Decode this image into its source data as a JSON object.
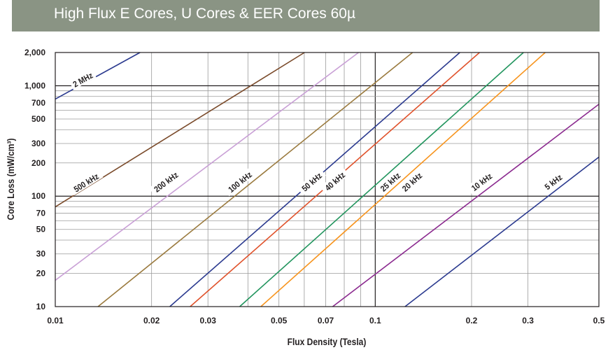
{
  "header": {
    "title": "High Flux E Cores, U Cores & EER Cores 60µ",
    "background": "#8a9484"
  },
  "chart_data": {
    "type": "line",
    "title": "High Flux E Cores, U Cores & EER Cores 60µ",
    "xlabel": "Flux Density (Tesla)",
    "ylabel": "Core Loss (mW/cm³)",
    "xscale": "log",
    "yscale": "log",
    "xlim": [
      0.01,
      0.5
    ],
    "ylim": [
      10,
      2000
    ],
    "grid": true,
    "x_ticks": [
      {
        "value": 0.01,
        "label": "0.01"
      },
      {
        "value": 0.02,
        "label": "0.02"
      },
      {
        "value": 0.03,
        "label": "0.03"
      },
      {
        "value": 0.05,
        "label": "0.05"
      },
      {
        "value": 0.07,
        "label": "0.07"
      },
      {
        "value": 0.1,
        "label": "0.1"
      },
      {
        "value": 0.2,
        "label": "0.2"
      },
      {
        "value": 0.3,
        "label": "0.3"
      },
      {
        "value": 0.5,
        "label": "0.5"
      }
    ],
    "y_ticks": [
      {
        "value": 10,
        "label": "10"
      },
      {
        "value": 20,
        "label": "20"
      },
      {
        "value": 30,
        "label": "30"
      },
      {
        "value": 50,
        "label": "50"
      },
      {
        "value": 70,
        "label": "70"
      },
      {
        "value": 100,
        "label": "100"
      },
      {
        "value": 200,
        "label": "200"
      },
      {
        "value": 300,
        "label": "300"
      },
      {
        "value": 500,
        "label": "500"
      },
      {
        "value": 700,
        "label": "700"
      },
      {
        "value": 1000,
        "label": "1,000"
      },
      {
        "value": 2000,
        "label": "2,000"
      }
    ],
    "x_minor_grid": [
      0.04,
      0.06,
      0.08,
      0.09
    ],
    "y_minor_grid": [
      40,
      60,
      80,
      90,
      400,
      600,
      800,
      900
    ],
    "major_grid_x": [
      0.1
    ],
    "major_grid_y": [
      100,
      1000
    ],
    "series": [
      {
        "name": "2 MHz",
        "color": "#2b3a8f",
        "points": [
          [
            0.01,
            757
          ],
          [
            0.0184,
            2000
          ]
        ]
      },
      {
        "name": "500 kHz",
        "color": "#7a4a2a",
        "points": [
          [
            0.01,
            80
          ],
          [
            0.0601,
            2000
          ]
        ]
      },
      {
        "name": "200 kHz",
        "color": "#c9a0d6",
        "points": [
          [
            0.01,
            17.3
          ],
          [
            0.0887,
            2000
          ]
        ]
      },
      {
        "name": "100 kHz",
        "color": "#9a7a3e",
        "points": [
          [
            0.0136,
            10
          ],
          [
            0.1308,
            2000
          ]
        ]
      },
      {
        "name": "50 kHz",
        "color": "#2b3a8f",
        "points": [
          [
            0.0228,
            10
          ],
          [
            0.1838,
            2000
          ]
        ]
      },
      {
        "name": "40 kHz",
        "color": "#e0522b",
        "points": [
          [
            0.0264,
            10
          ],
          [
            0.2118,
            2000
          ]
        ]
      },
      {
        "name": "25 kHz",
        "color": "#22955e",
        "points": [
          [
            0.0377,
            10
          ],
          [
            0.2905,
            2000
          ]
        ]
      },
      {
        "name": "20 kHz",
        "color": "#f7941d",
        "points": [
          [
            0.0439,
            10
          ],
          [
            0.3398,
            2000
          ]
        ]
      },
      {
        "name": "10 kHz",
        "color": "#8b2a8f",
        "points": [
          [
            0.0736,
            10
          ],
          [
            0.5,
            680
          ]
        ]
      },
      {
        "name": "5 kHz",
        "color": "#2b3a8f",
        "points": [
          [
            0.1239,
            10
          ],
          [
            0.5,
            226
          ]
        ]
      }
    ],
    "annotations": [
      {
        "text": "2 MHz",
        "series": "2 MHz",
        "x": 0.0122,
        "y": 1130
      },
      {
        "text": "500 kHz",
        "series": "500 kHz",
        "x": 0.0125,
        "y": 132
      },
      {
        "text": "200 kHz",
        "series": "200 kHz",
        "x": 0.0222,
        "y": 134
      },
      {
        "text": "100 kHz",
        "series": "100 kHz",
        "x": 0.0378,
        "y": 134
      },
      {
        "text": "50 kHz",
        "series": "50 kHz",
        "x": 0.0634,
        "y": 134
      },
      {
        "text": "40 kHz",
        "series": "40 kHz",
        "x": 0.0749,
        "y": 136
      },
      {
        "text": "25 kHz",
        "series": "25 kHz",
        "x": 0.1115,
        "y": 134
      },
      {
        "text": "20 kHz",
        "series": "20 kHz",
        "x": 0.1304,
        "y": 134
      },
      {
        "text": "10 kHz",
        "series": "10 kHz",
        "x": 0.2153,
        "y": 134
      },
      {
        "text": "5 kHz",
        "series": "5 kHz",
        "x": 0.3605,
        "y": 134
      }
    ]
  }
}
